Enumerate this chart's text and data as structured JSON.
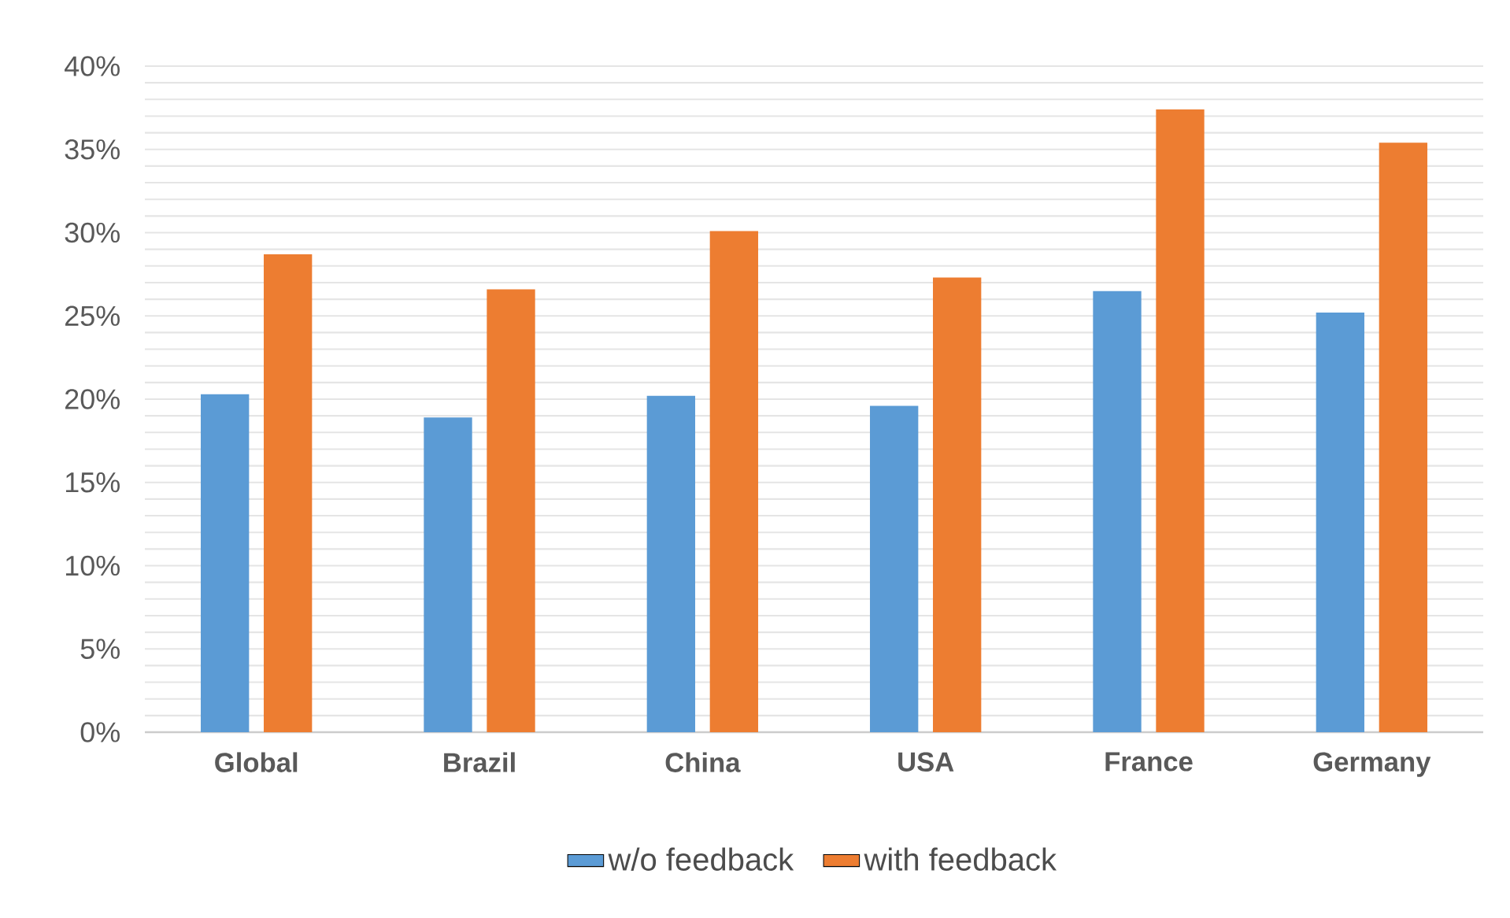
{
  "chart_data": {
    "type": "bar",
    "categories": [
      "Global",
      "Brazil",
      "China",
      "USA",
      "France",
      "Germany"
    ],
    "series": [
      {
        "name": "w/o feedback",
        "color": "#5b9bd5",
        "values": [
          20.3,
          18.9,
          20.2,
          19.6,
          26.5,
          25.2
        ]
      },
      {
        "name": "with feedback",
        "color": "#ed7d31",
        "values": [
          28.7,
          26.6,
          30.1,
          27.3,
          37.4,
          35.4
        ]
      }
    ],
    "ylim": [
      0,
      40
    ],
    "yticks": [
      {
        "value": 0,
        "label": "0%"
      },
      {
        "value": 5,
        "label": "5%"
      },
      {
        "value": 10,
        "label": "10%"
      },
      {
        "value": 15,
        "label": "15%"
      },
      {
        "value": 20,
        "label": "20%"
      },
      {
        "value": 25,
        "label": "25%"
      },
      {
        "value": 30,
        "label": "30%"
      },
      {
        "value": 35,
        "label": "35%"
      },
      {
        "value": 40,
        "label": "40%"
      }
    ],
    "grid": "y",
    "legend": "bottom"
  }
}
